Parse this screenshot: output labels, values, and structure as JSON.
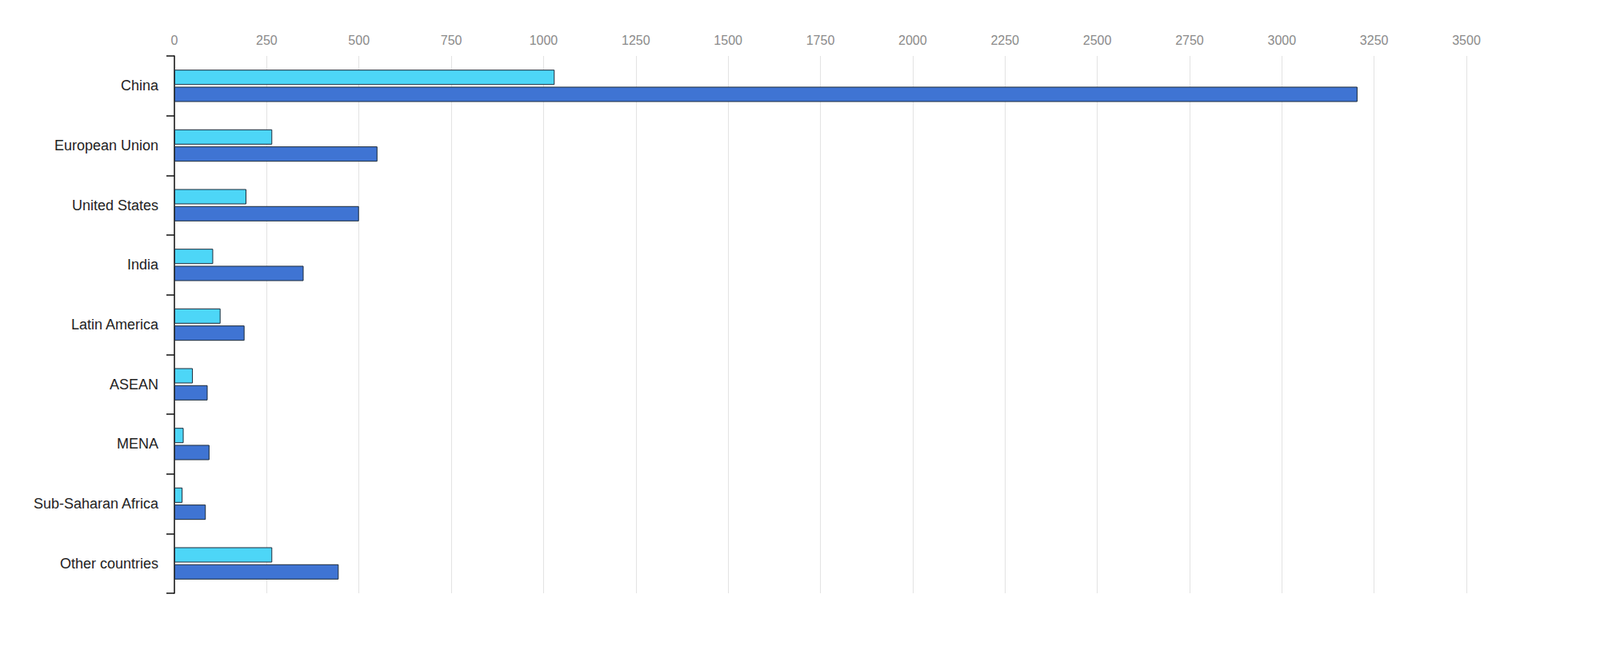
{
  "chart_data": {
    "type": "bar",
    "orientation": "horizontal",
    "categories": [
      "China",
      "European Union",
      "United States",
      "India",
      "Latin America",
      "ASEAN",
      "MENA",
      "Sub-Saharan Africa",
      "Other countries"
    ],
    "series": [
      {
        "color": "#4dd6f7",
        "values": [
          1030,
          265,
          195,
          105,
          125,
          50,
          25,
          22,
          265
        ]
      },
      {
        "color": "#3f74d3",
        "values": [
          3205,
          550,
          500,
          350,
          190,
          90,
          95,
          85,
          445
        ]
      }
    ],
    "xlim": [
      0,
      3500
    ],
    "xticks": [
      0,
      250,
      500,
      750,
      1000,
      1250,
      1500,
      1750,
      2000,
      2250,
      2500,
      2750,
      3000,
      3250,
      3500
    ],
    "grid": true
  }
}
